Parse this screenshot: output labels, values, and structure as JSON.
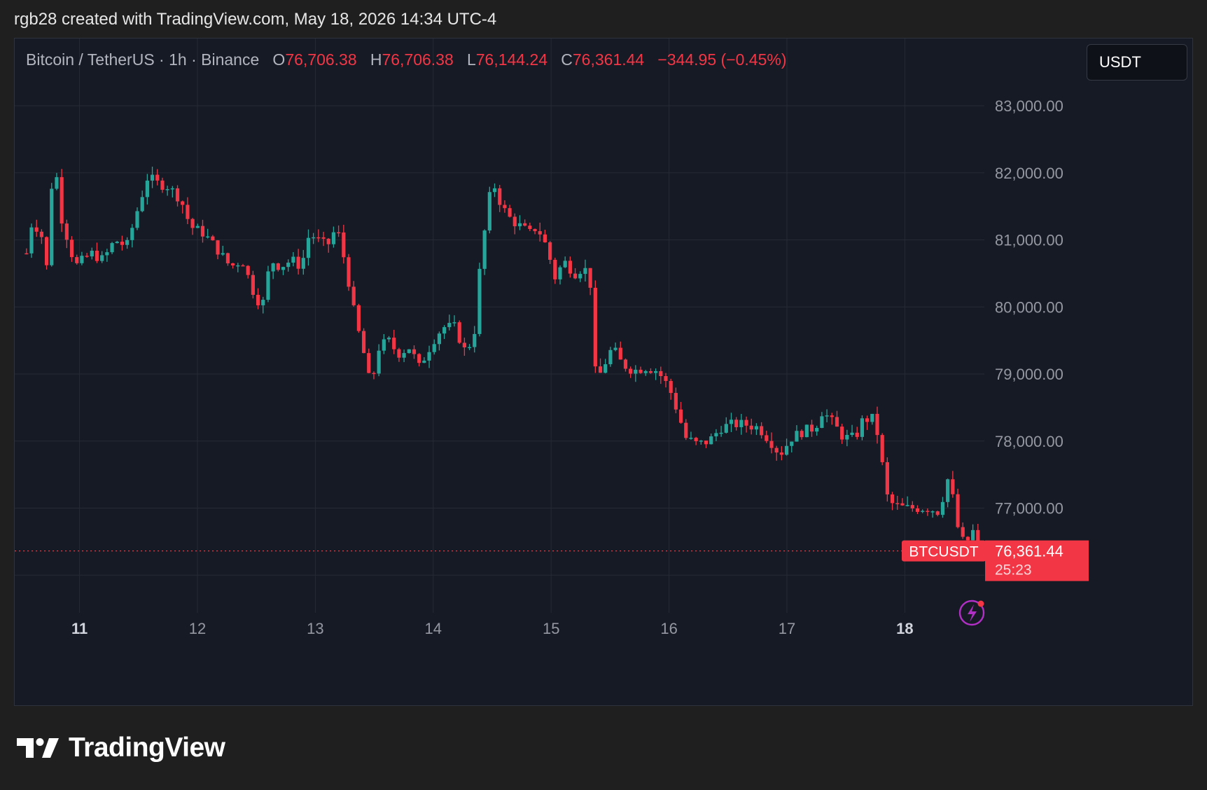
{
  "caption": "rgb28 created with TradingView.com, May 18, 2026 14:34 UTC-4",
  "legend": {
    "symbol": "Bitcoin / TetherUS · 1h · Binance",
    "open_label": "O",
    "open_value": "76,706.38",
    "high_label": "H",
    "high_value": "76,706.38",
    "low_label": "L",
    "low_value": "76,144.24",
    "close_label": "C",
    "close_value": "76,361.44",
    "change": "−344.95 (−0.45%)"
  },
  "currency_button": "USDT",
  "brand_name": "TradingView",
  "colors": {
    "up": "#26a69a",
    "down": "#f23645",
    "background": "#161a25",
    "grid": "#262a35",
    "axis_text": "#9598a1",
    "current_price_line": "#f23645",
    "alert_icon": "#b02fc4"
  },
  "chart_data": {
    "type": "candlestick",
    "symbol": "BTCUSDT",
    "interval": "1h",
    "exchange": "Binance",
    "y_axis": {
      "ticks": [
        83000,
        82000,
        81000,
        80000,
        79000,
        78000,
        77000
      ],
      "tick_labels": [
        "83,000.00",
        "82,000.00",
        "81,000.00",
        "80,000.00",
        "79,000.00",
        "78,000.00",
        "77,000.00"
      ],
      "range": [
        75300,
        84000
      ]
    },
    "x_axis": {
      "tick_labels": [
        "11",
        "12",
        "13",
        "14",
        "15",
        "16",
        "17",
        "18"
      ],
      "bold_ticks": [
        "11",
        "18"
      ],
      "range_days": [
        10.5,
        18.68
      ]
    },
    "grid": true,
    "current_price": {
      "label": "BTCUSDT",
      "value": 76361.44,
      "value_label": "76,361.44",
      "countdown": "25:23"
    },
    "ohlc_keyframes": [
      {
        "t": 10.55,
        "p": 80800
      },
      {
        "t": 10.6,
        "p": 81300
      },
      {
        "t": 10.68,
        "p": 81050
      },
      {
        "t": 10.71,
        "p": 80300
      },
      {
        "t": 10.75,
        "p": 81400
      },
      {
        "t": 10.78,
        "p": 82300
      },
      {
        "t": 10.85,
        "p": 81300
      },
      {
        "t": 10.92,
        "p": 80900
      },
      {
        "t": 10.96,
        "p": 80600
      },
      {
        "t": 11.1,
        "p": 80800
      },
      {
        "t": 11.2,
        "p": 80700
      },
      {
        "t": 11.3,
        "p": 81000
      },
      {
        "t": 11.4,
        "p": 80900
      },
      {
        "t": 11.5,
        "p": 81500
      },
      {
        "t": 11.58,
        "p": 81950
      },
      {
        "t": 11.65,
        "p": 81850
      },
      {
        "t": 11.75,
        "p": 81800
      },
      {
        "t": 11.86,
        "p": 81600
      },
      {
        "t": 11.94,
        "p": 81200
      },
      {
        "t": 12.05,
        "p": 81100
      },
      {
        "t": 12.15,
        "p": 80900
      },
      {
        "t": 12.28,
        "p": 80600
      },
      {
        "t": 12.38,
        "p": 80700
      },
      {
        "t": 12.48,
        "p": 80200
      },
      {
        "t": 12.55,
        "p": 80000
      },
      {
        "t": 12.62,
        "p": 80700
      },
      {
        "t": 12.7,
        "p": 80600
      },
      {
        "t": 12.8,
        "p": 80700
      },
      {
        "t": 12.88,
        "p": 80600
      },
      {
        "t": 12.95,
        "p": 81100
      },
      {
        "t": 13.02,
        "p": 81000
      },
      {
        "t": 13.1,
        "p": 80900
      },
      {
        "t": 13.18,
        "p": 81200
      },
      {
        "t": 13.26,
        "p": 80600
      },
      {
        "t": 13.34,
        "p": 79800
      },
      {
        "t": 13.4,
        "p": 79400
      },
      {
        "t": 13.47,
        "p": 78800
      },
      {
        "t": 13.54,
        "p": 79400
      },
      {
        "t": 13.62,
        "p": 79500
      },
      {
        "t": 13.7,
        "p": 79300
      },
      {
        "t": 13.8,
        "p": 79400
      },
      {
        "t": 13.88,
        "p": 79100
      },
      {
        "t": 14.0,
        "p": 79500
      },
      {
        "t": 14.08,
        "p": 79700
      },
      {
        "t": 14.18,
        "p": 79700
      },
      {
        "t": 14.28,
        "p": 79300
      },
      {
        "t": 14.36,
        "p": 79700
      },
      {
        "t": 14.4,
        "p": 80700
      },
      {
        "t": 14.45,
        "p": 81300
      },
      {
        "t": 14.5,
        "p": 81900
      },
      {
        "t": 14.58,
        "p": 81500
      },
      {
        "t": 14.66,
        "p": 81300
      },
      {
        "t": 14.74,
        "p": 81200
      },
      {
        "t": 14.82,
        "p": 81100
      },
      {
        "t": 14.88,
        "p": 81200
      },
      {
        "t": 14.96,
        "p": 80900
      },
      {
        "t": 15.04,
        "p": 80400
      },
      {
        "t": 15.1,
        "p": 80700
      },
      {
        "t": 15.2,
        "p": 80500
      },
      {
        "t": 15.28,
        "p": 80600
      },
      {
        "t": 15.34,
        "p": 80300
      },
      {
        "t": 15.38,
        "p": 78850
      },
      {
        "t": 15.44,
        "p": 79100
      },
      {
        "t": 15.52,
        "p": 79400
      },
      {
        "t": 15.6,
        "p": 79150
      },
      {
        "t": 15.7,
        "p": 79050
      },
      {
        "t": 15.8,
        "p": 79100
      },
      {
        "t": 15.9,
        "p": 79050
      },
      {
        "t": 16.0,
        "p": 78800
      },
      {
        "t": 16.08,
        "p": 78400
      },
      {
        "t": 16.14,
        "p": 78050
      },
      {
        "t": 16.24,
        "p": 77950
      },
      {
        "t": 16.34,
        "p": 78000
      },
      {
        "t": 16.44,
        "p": 78200
      },
      {
        "t": 16.54,
        "p": 78250
      },
      {
        "t": 16.64,
        "p": 78250
      },
      {
        "t": 16.76,
        "p": 78200
      },
      {
        "t": 16.86,
        "p": 78000
      },
      {
        "t": 16.94,
        "p": 77800
      },
      {
        "t": 17.04,
        "p": 78050
      },
      {
        "t": 17.14,
        "p": 78150
      },
      {
        "t": 17.24,
        "p": 78200
      },
      {
        "t": 17.3,
        "p": 78450
      },
      {
        "t": 17.4,
        "p": 78250
      },
      {
        "t": 17.48,
        "p": 78050
      },
      {
        "t": 17.58,
        "p": 78050
      },
      {
        "t": 17.64,
        "p": 78300
      },
      {
        "t": 17.72,
        "p": 78350
      },
      {
        "t": 17.78,
        "p": 78050
      },
      {
        "t": 17.84,
        "p": 77200
      },
      {
        "t": 17.9,
        "p": 77050
      },
      {
        "t": 18.0,
        "p": 77000
      },
      {
        "t": 18.1,
        "p": 77000
      },
      {
        "t": 18.2,
        "p": 77000
      },
      {
        "t": 18.28,
        "p": 76950
      },
      {
        "t": 18.34,
        "p": 77250
      },
      {
        "t": 18.38,
        "p": 77550
      },
      {
        "t": 18.42,
        "p": 76950
      },
      {
        "t": 18.47,
        "p": 76550
      },
      {
        "t": 18.52,
        "p": 76450
      },
      {
        "t": 18.57,
        "p": 76700
      },
      {
        "t": 18.62,
        "p": 76361
      }
    ],
    "candle_count": 190,
    "candle_spacing_days": 0.0417
  }
}
